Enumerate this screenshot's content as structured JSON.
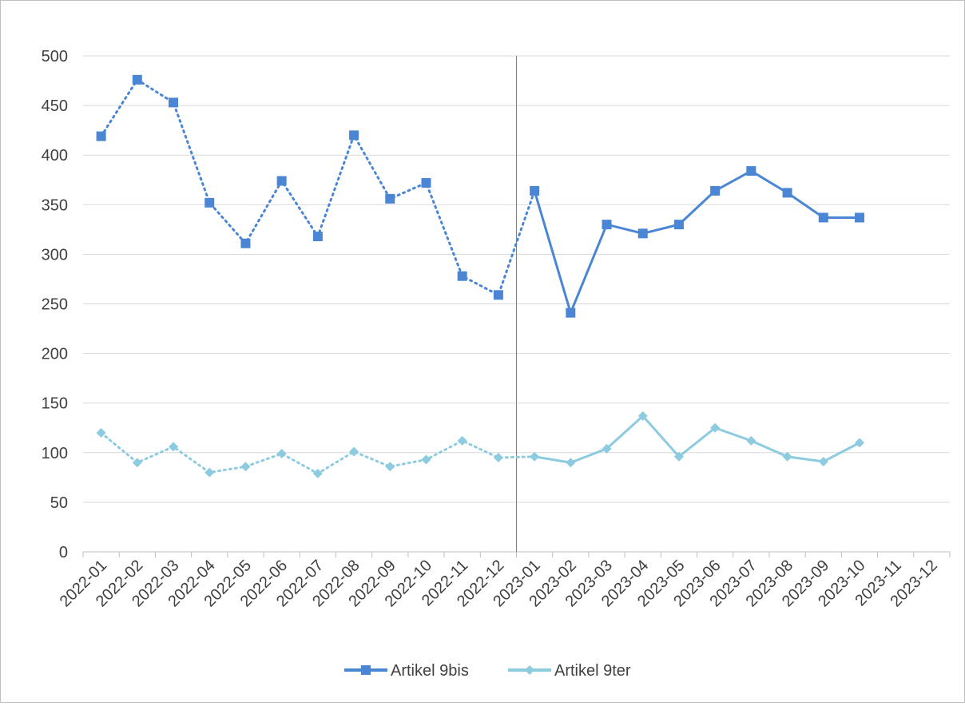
{
  "chart_data": {
    "type": "line",
    "title": "",
    "xlabel": "",
    "ylabel": "",
    "ylim": [
      0,
      500
    ],
    "yticks": [
      0,
      50,
      100,
      150,
      200,
      250,
      300,
      350,
      400,
      450,
      500
    ],
    "grid": true,
    "legend_position": "bottom",
    "categories": [
      "2022-01",
      "2022-02",
      "2022-03",
      "2022-04",
      "2022-05",
      "2022-06",
      "2022-07",
      "2022-08",
      "2022-09",
      "2022-10",
      "2022-11",
      "2022-12",
      "2023-01",
      "2023-02",
      "2023-03",
      "2023-04",
      "2023-05",
      "2023-06",
      "2023-07",
      "2023-08",
      "2023-09",
      "2023-10",
      "2023-11",
      "2023-12"
    ],
    "divider_after": "2022-12",
    "series": [
      {
        "name": "Artikel 9bis",
        "color": "#4a86d4",
        "marker": "square",
        "values": [
          419,
          476,
          453,
          352,
          311,
          374,
          318,
          420,
          356,
          372,
          278,
          259,
          364,
          241,
          330,
          321,
          330,
          364,
          384,
          362,
          337,
          337,
          null,
          null
        ]
      },
      {
        "name": "Artikel 9ter",
        "color": "#8ccbe0",
        "marker": "diamond",
        "values": [
          120,
          90,
          106,
          80,
          86,
          99,
          79,
          101,
          86,
          93,
          112,
          95,
          96,
          90,
          104,
          137,
          96,
          125,
          112,
          96,
          91,
          110,
          null,
          null
        ]
      }
    ]
  }
}
